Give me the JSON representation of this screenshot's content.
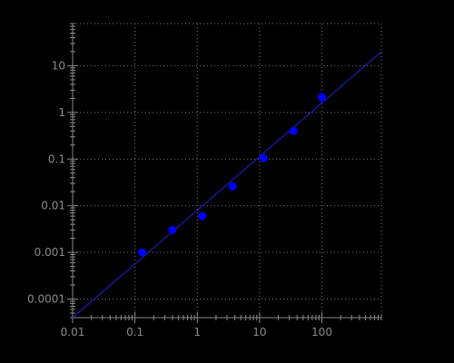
{
  "chart_data": {
    "type": "scatter",
    "title": "",
    "xlabel": "",
    "ylabel": "",
    "xscale": "log",
    "yscale": "log",
    "xlim": [
      0.01,
      900
    ],
    "ylim": [
      4e-05,
      80
    ],
    "grid": true,
    "x_ticks": [
      {
        "value": 0.01,
        "label": "0.01"
      },
      {
        "value": 0.1,
        "label": "0.1"
      },
      {
        "value": 1,
        "label": "1"
      },
      {
        "value": 10,
        "label": "10"
      },
      {
        "value": 100,
        "label": "100"
      }
    ],
    "y_ticks": [
      {
        "value": 0.0001,
        "label": "0.0001"
      },
      {
        "value": 0.001,
        "label": "0.001"
      },
      {
        "value": 0.01,
        "label": "0.01"
      },
      {
        "value": 0.1,
        "label": "0.1"
      },
      {
        "value": 1,
        "label": "1"
      },
      {
        "value": 10,
        "label": "10"
      }
    ],
    "series": [
      {
        "type": "scatter",
        "color": "#0000ff",
        "points": [
          {
            "x": 0.13,
            "y": 0.001
          },
          {
            "x": 0.4,
            "y": 0.003
          },
          {
            "x": 1.2,
            "y": 0.006
          },
          {
            "x": 3.7,
            "y": 0.026
          },
          {
            "x": 11.5,
            "y": 0.105
          },
          {
            "x": 35,
            "y": 0.4
          },
          {
            "x": 100,
            "y": 2.1,
            "y_err": [
              1.6,
              2.7
            ]
          }
        ]
      },
      {
        "type": "line",
        "color": "#1a1aa8",
        "points": [
          {
            "x": 0.01,
            "y": 4e-05
          },
          {
            "x": 900,
            "y": 20
          }
        ]
      }
    ],
    "colors": {
      "background": "#000000",
      "axis": "#8a8a8a",
      "grid": "#7a7a7a",
      "tick_text": "#8a8a8a",
      "points": "#0000ff",
      "fit_line": "#1a1aa8"
    }
  }
}
